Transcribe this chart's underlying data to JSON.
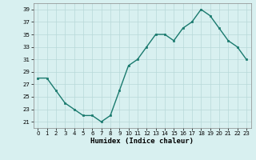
{
  "x": [
    0,
    1,
    2,
    3,
    4,
    5,
    6,
    7,
    8,
    9,
    10,
    11,
    12,
    13,
    14,
    15,
    16,
    17,
    18,
    19,
    20,
    21,
    22,
    23
  ],
  "y": [
    28,
    28,
    26,
    24,
    23,
    22,
    22,
    21,
    22,
    26,
    30,
    31,
    33,
    35,
    35,
    34,
    36,
    37,
    39,
    38,
    36,
    34,
    33,
    31
  ],
  "line_color": "#1a7a6e",
  "marker": "s",
  "marker_size": 1.8,
  "bg_color": "#d8f0f0",
  "grid_color": "#b8d8d8",
  "xlabel": "Humidex (Indice chaleur)",
  "ylim": [
    20,
    40
  ],
  "xlim": [
    -0.5,
    23.5
  ],
  "yticks": [
    21,
    23,
    25,
    27,
    29,
    31,
    33,
    35,
    37,
    39
  ],
  "xticks": [
    0,
    1,
    2,
    3,
    4,
    5,
    6,
    7,
    8,
    9,
    10,
    11,
    12,
    13,
    14,
    15,
    16,
    17,
    18,
    19,
    20,
    21,
    22,
    23
  ],
  "tick_fontsize": 5.0,
  "xlabel_fontsize": 6.5,
  "line_width": 1.0
}
